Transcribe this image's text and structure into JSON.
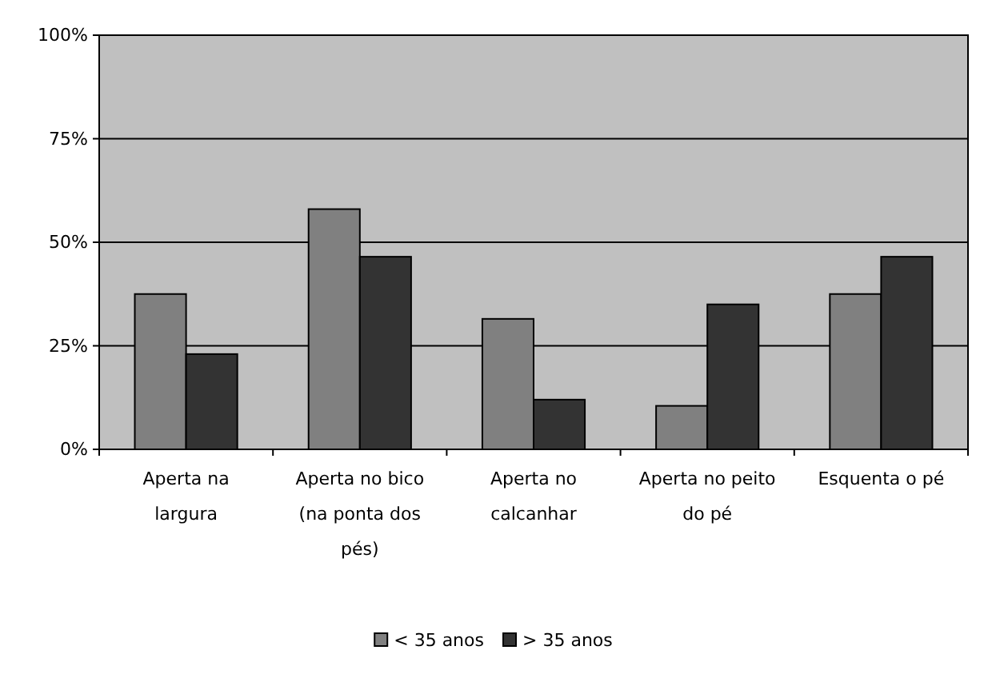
{
  "chart_data": {
    "type": "bar",
    "categories": [
      "Aperta na largura",
      "Aperta no bico (na ponta dos pés)",
      "Aperta no calcanhar",
      "Aperta no peito do pé",
      "Esquenta o pé"
    ],
    "series": [
      {
        "name": "< 35 anos",
        "color": "#808080",
        "values": [
          37.5,
          58,
          31.5,
          10.5,
          37.5
        ]
      },
      {
        "name": "> 35 anos",
        "color": "#333333",
        "values": [
          23,
          46.5,
          12,
          35,
          46.5
        ]
      }
    ],
    "ylim": [
      0,
      100
    ],
    "yticks": [
      {
        "value": 0,
        "label": "0%"
      },
      {
        "value": 25,
        "label": "25%"
      },
      {
        "value": 50,
        "label": "50%"
      },
      {
        "value": 75,
        "label": "75%"
      },
      {
        "value": 100,
        "label": "100%"
      }
    ],
    "grid": "y",
    "legend": "bottom"
  }
}
